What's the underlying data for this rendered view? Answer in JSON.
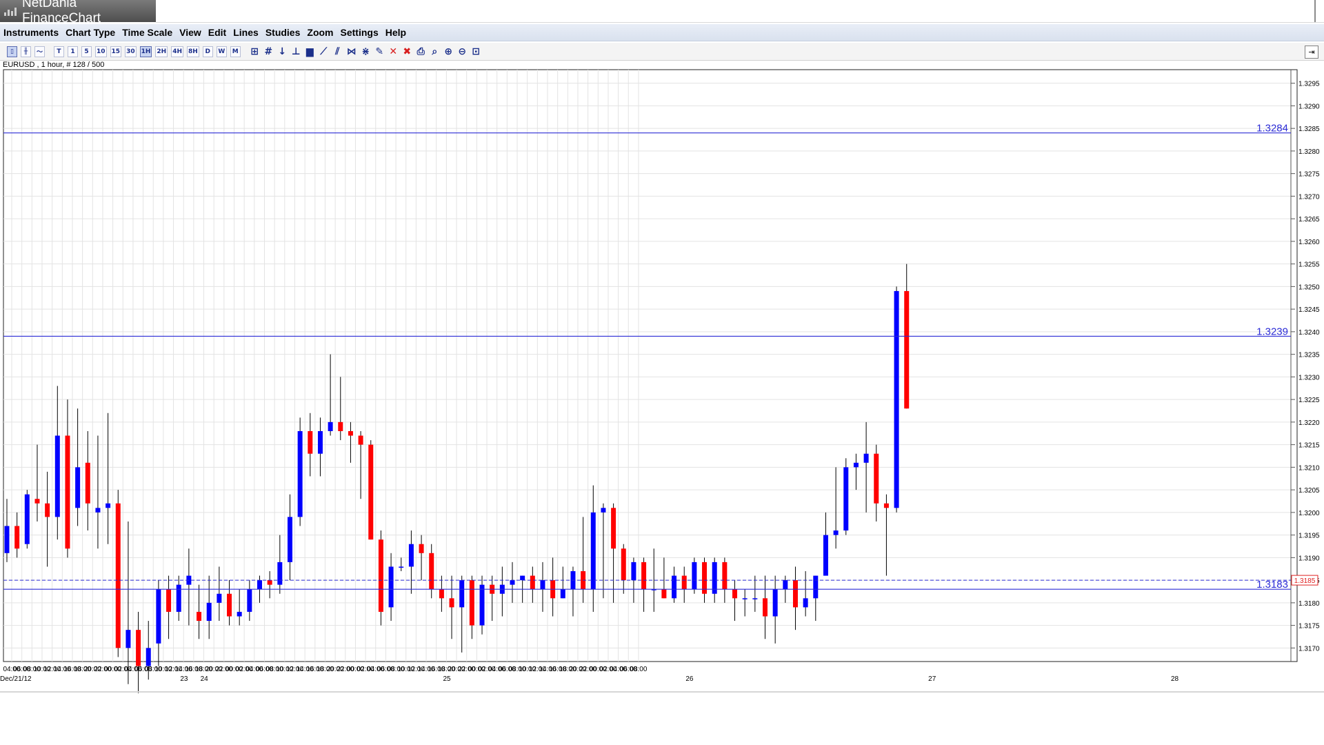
{
  "window": {
    "title": "NetDania FinanceChart",
    "title_icon": "chart-bars-icon"
  },
  "menu": [
    "Instruments",
    "Chart Type",
    "Time Scale",
    "View",
    "Edit",
    "Lines",
    "Studies",
    "Zoom",
    "Settings",
    "Help"
  ],
  "toolbar": {
    "chart_types": [
      {
        "name": "candlestick-icon",
        "glyph": "▯",
        "active": true
      },
      {
        "name": "bar-chart-icon",
        "glyph": "╫",
        "active": false
      },
      {
        "name": "line-chart-icon",
        "glyph": "〜",
        "active": false
      }
    ],
    "timescales": [
      {
        "label": "T",
        "active": false
      },
      {
        "label": "1",
        "active": false
      },
      {
        "label": "5",
        "active": false
      },
      {
        "label": "10",
        "active": false
      },
      {
        "label": "15",
        "active": false
      },
      {
        "label": "30",
        "active": false
      },
      {
        "label": "1H",
        "active": true
      },
      {
        "label": "2H",
        "active": false
      },
      {
        "label": "4H",
        "active": false
      },
      {
        "label": "8H",
        "active": false
      },
      {
        "label": "D",
        "active": false
      },
      {
        "label": "W",
        "active": false
      },
      {
        "label": "M",
        "active": false
      }
    ],
    "tools": [
      {
        "name": "crosshair-icon",
        "glyph": "⊞"
      },
      {
        "name": "grid-icon",
        "glyph": "#"
      },
      {
        "name": "arrow-down-icon",
        "glyph": "↓"
      },
      {
        "name": "step-chart-icon",
        "glyph": "⊥"
      },
      {
        "name": "volume-bars-icon",
        "glyph": "▆"
      },
      {
        "name": "trendline-icon",
        "glyph": "⟋"
      },
      {
        "name": "channel-icon",
        "glyph": "⫽"
      },
      {
        "name": "fibonacci-icon",
        "glyph": "⋈"
      },
      {
        "name": "gann-icon",
        "glyph": "⋇"
      },
      {
        "name": "edit-line-icon",
        "glyph": "✎"
      },
      {
        "name": "delete-icon",
        "glyph": "✕",
        "red": true
      },
      {
        "name": "delete-all-icon",
        "glyph": "✖",
        "red": true
      },
      {
        "name": "print-icon",
        "glyph": "⎙"
      },
      {
        "name": "print-preview-icon",
        "glyph": "⌕"
      },
      {
        "name": "zoom-in-icon",
        "glyph": "⊕"
      },
      {
        "name": "zoom-out-icon",
        "glyph": "⊖"
      },
      {
        "name": "zoom-reset-icon",
        "glyph": "⊡"
      }
    ],
    "right_button_icon": "panel-toggle-icon",
    "right_button_glyph": "⇥"
  },
  "instrument_label": "EURUSD , 1 hour, # 128 / 500",
  "chart_data": {
    "type": "candlestick",
    "instrument": "EURUSD",
    "timeframe": "1 hour",
    "ylim": [
      1.3167,
      1.3298
    ],
    "yticks": [
      "1.3170",
      "1.3175",
      "1.3180",
      "1.3185",
      "1.3190",
      "1.3195",
      "1.3200",
      "1.3205",
      "1.3210",
      "1.3215",
      "1.3220",
      "1.3225",
      "1.3230",
      "1.3235",
      "1.3240",
      "1.3245",
      "1.3250",
      "1.3255",
      "1.3260",
      "1.3265",
      "1.3270",
      "1.3275",
      "1.3280",
      "1.3285",
      "1.3290",
      "1.3295"
    ],
    "xtick_labels": [
      "04:00",
      "06:00",
      "08:00",
      "10:00",
      "12:00",
      "14:00",
      "16:00",
      "18:00",
      "20:00",
      "22:00",
      "00:00",
      "02:00",
      "04:00",
      "06:00",
      "08:00",
      "10:00",
      "12:00",
      "14:00",
      "16:00",
      "18:00",
      "20:00",
      "22:00",
      "00:00",
      "02:00",
      "04:00",
      "06:00",
      "08:00",
      "10:00",
      "12:00",
      "14:00",
      "16:00",
      "18:00",
      "20:00",
      "22:00",
      "00:00",
      "02:00",
      "04:00",
      "06:00",
      "08:00",
      "10:00",
      "12:00",
      "14:00",
      "16:00",
      "18:00",
      "20:00",
      "22:00",
      "00:00",
      "02:00",
      "04:00",
      "06:00",
      "08:00",
      "10:00",
      "12:00",
      "14:00",
      "16:00",
      "18:00",
      "20:00",
      "22:00",
      "00:00",
      "02:00",
      "04:00",
      "06:00",
      "08:00"
    ],
    "date_labels": [
      {
        "text": "Dec/21/12",
        "index": 0
      },
      {
        "text": "23",
        "index": 9
      },
      {
        "text": "24",
        "index": 10
      },
      {
        "text": "25",
        "index": 22
      },
      {
        "text": "26",
        "index": 34
      },
      {
        "text": "27",
        "index": 46
      },
      {
        "text": "28",
        "index": 58
      }
    ],
    "hlines": [
      {
        "value": 1.3284,
        "label": "1.3284",
        "style": "solid"
      },
      {
        "value": 1.3239,
        "label": "1.3239",
        "style": "solid"
      },
      {
        "value": 1.3183,
        "label": "1.3183",
        "style": "solid"
      }
    ],
    "current_price": {
      "value": 1.3185,
      "label": "1.3185"
    },
    "up_color": "#0000ff",
    "down_color": "#ff0000",
    "line_color": "#2b2bd6",
    "candles": [
      [
        1.3191,
        1.3197,
        1.3189,
        1.3203
      ],
      [
        1.3197,
        1.3192,
        1.319,
        1.32
      ],
      [
        1.3193,
        1.3204,
        1.3192,
        1.3205
      ],
      [
        1.3203,
        1.3202,
        1.3198,
        1.3215
      ],
      [
        1.3202,
        1.3199,
        1.3188,
        1.3209
      ],
      [
        1.3199,
        1.3217,
        1.3194,
        1.3228
      ],
      [
        1.3217,
        1.3192,
        1.319,
        1.3225
      ],
      [
        1.3201,
        1.321,
        1.3197,
        1.3223
      ],
      [
        1.3211,
        1.3202,
        1.3196,
        1.3218
      ],
      [
        1.32,
        1.3201,
        1.3192,
        1.3217
      ],
      [
        1.3201,
        1.3202,
        1.3193,
        1.3222
      ],
      [
        1.3202,
        1.317,
        1.3168,
        1.3205
      ],
      [
        1.317,
        1.3174,
        1.3162,
        1.3198
      ],
      [
        1.3174,
        1.3166,
        1.316,
        1.3178
      ],
      [
        1.3166,
        1.317,
        1.3163,
        1.3176
      ],
      [
        1.3171,
        1.3183,
        1.3166,
        1.3185
      ],
      [
        1.3183,
        1.3178,
        1.3172,
        1.3186
      ],
      [
        1.3178,
        1.3184,
        1.3176,
        1.3186
      ],
      [
        1.3184,
        1.3186,
        1.3175,
        1.3192
      ],
      [
        1.3178,
        1.3176,
        1.3172,
        1.3184
      ],
      [
        1.3176,
        1.318,
        1.3172,
        1.3186
      ],
      [
        1.318,
        1.3182,
        1.3176,
        1.3188
      ],
      [
        1.3182,
        1.3177,
        1.3175,
        1.3185
      ],
      [
        1.3177,
        1.3178,
        1.3175,
        1.3183
      ],
      [
        1.3178,
        1.3183,
        1.3176,
        1.3185
      ],
      [
        1.3183,
        1.3185,
        1.318,
        1.3186
      ],
      [
        1.3185,
        1.3184,
        1.3181,
        1.3187
      ],
      [
        1.3184,
        1.3189,
        1.3182,
        1.3195
      ],
      [
        1.3189,
        1.3199,
        1.3185,
        1.3204
      ],
      [
        1.3199,
        1.3218,
        1.3197,
        1.3221
      ],
      [
        1.3218,
        1.3213,
        1.3208,
        1.3222
      ],
      [
        1.3213,
        1.3218,
        1.3208,
        1.3221
      ],
      [
        1.3218,
        1.322,
        1.3217,
        1.3235
      ],
      [
        1.322,
        1.3218,
        1.3216,
        1.323
      ],
      [
        1.3218,
        1.3217,
        1.3211,
        1.322
      ],
      [
        1.3217,
        1.3215,
        1.3203,
        1.3218
      ],
      [
        1.3215,
        1.3194,
        1.3194,
        1.3216
      ],
      [
        1.3194,
        1.3178,
        1.3175,
        1.3196
      ],
      [
        1.3179,
        1.3188,
        1.3176,
        1.3191
      ],
      [
        1.3188,
        1.3188,
        1.3187,
        1.319
      ],
      [
        1.3188,
        1.3193,
        1.3182,
        1.3196
      ],
      [
        1.3193,
        1.3191,
        1.3185,
        1.3195
      ],
      [
        1.3191,
        1.3183,
        1.3181,
        1.3193
      ],
      [
        1.3183,
        1.3181,
        1.3178,
        1.3186
      ],
      [
        1.3181,
        1.3179,
        1.3172,
        1.3186
      ],
      [
        1.3179,
        1.3185,
        1.3169,
        1.3186
      ],
      [
        1.3185,
        1.3175,
        1.3172,
        1.3186
      ],
      [
        1.3175,
        1.3184,
        1.3173,
        1.3186
      ],
      [
        1.3184,
        1.3182,
        1.3176,
        1.3186
      ],
      [
        1.3182,
        1.3184,
        1.3177,
        1.3188
      ],
      [
        1.3184,
        1.3185,
        1.318,
        1.3189
      ],
      [
        1.3185,
        1.3186,
        1.318,
        1.3186
      ],
      [
        1.3186,
        1.3183,
        1.318,
        1.3188
      ],
      [
        1.3183,
        1.3185,
        1.3178,
        1.3189
      ],
      [
        1.3185,
        1.3181,
        1.3177,
        1.319
      ],
      [
        1.3181,
        1.3183,
        1.3181,
        1.3188
      ],
      [
        1.3183,
        1.3187,
        1.3177,
        1.3188
      ],
      [
        1.3187,
        1.3183,
        1.318,
        1.3199
      ],
      [
        1.3183,
        1.32,
        1.3178,
        1.3206
      ],
      [
        1.32,
        1.3201,
        1.3181,
        1.3202
      ],
      [
        1.3201,
        1.3192,
        1.318,
        1.3202
      ],
      [
        1.3192,
        1.3185,
        1.3182,
        1.3193
      ],
      [
        1.3185,
        1.3189,
        1.318,
        1.319
      ],
      [
        1.3189,
        1.3183,
        1.3178,
        1.319
      ],
      [
        1.3183,
        1.3183,
        1.3178,
        1.3192
      ],
      [
        1.3183,
        1.3181,
        1.3181,
        1.319
      ],
      [
        1.3181,
        1.3186,
        1.318,
        1.3188
      ],
      [
        1.3186,
        1.3183,
        1.318,
        1.3188
      ],
      [
        1.3183,
        1.3189,
        1.3182,
        1.319
      ],
      [
        1.3189,
        1.3182,
        1.318,
        1.319
      ],
      [
        1.3182,
        1.3189,
        1.318,
        1.319
      ],
      [
        1.3189,
        1.3183,
        1.318,
        1.319
      ],
      [
        1.3183,
        1.3181,
        1.3176,
        1.3185
      ],
      [
        1.3181,
        1.3181,
        1.3177,
        1.3183
      ],
      [
        1.3181,
        1.3181,
        1.3178,
        1.3186
      ],
      [
        1.3181,
        1.3177,
        1.3172,
        1.3186
      ],
      [
        1.3177,
        1.3183,
        1.3171,
        1.3186
      ],
      [
        1.3183,
        1.3185,
        1.318,
        1.3186
      ],
      [
        1.3185,
        1.3179,
        1.3174,
        1.3188
      ],
      [
        1.3179,
        1.3181,
        1.3177,
        1.3187
      ],
      [
        1.3181,
        1.3186,
        1.3176,
        1.3186
      ],
      [
        1.3186,
        1.3195,
        1.3186,
        1.32
      ],
      [
        1.3195,
        1.3196,
        1.3192,
        1.321
      ],
      [
        1.3196,
        1.321,
        1.3195,
        1.3212
      ],
      [
        1.321,
        1.3211,
        1.3205,
        1.3213
      ],
      [
        1.3211,
        1.3213,
        1.32,
        1.322
      ],
      [
        1.3213,
        1.3202,
        1.3198,
        1.3215
      ],
      [
        1.3202,
        1.3201,
        1.3186,
        1.3204
      ],
      [
        1.3201,
        1.3249,
        1.32,
        1.325
      ],
      [
        1.3249,
        1.3223,
        1.3223,
        1.3255
      ]
    ]
  }
}
